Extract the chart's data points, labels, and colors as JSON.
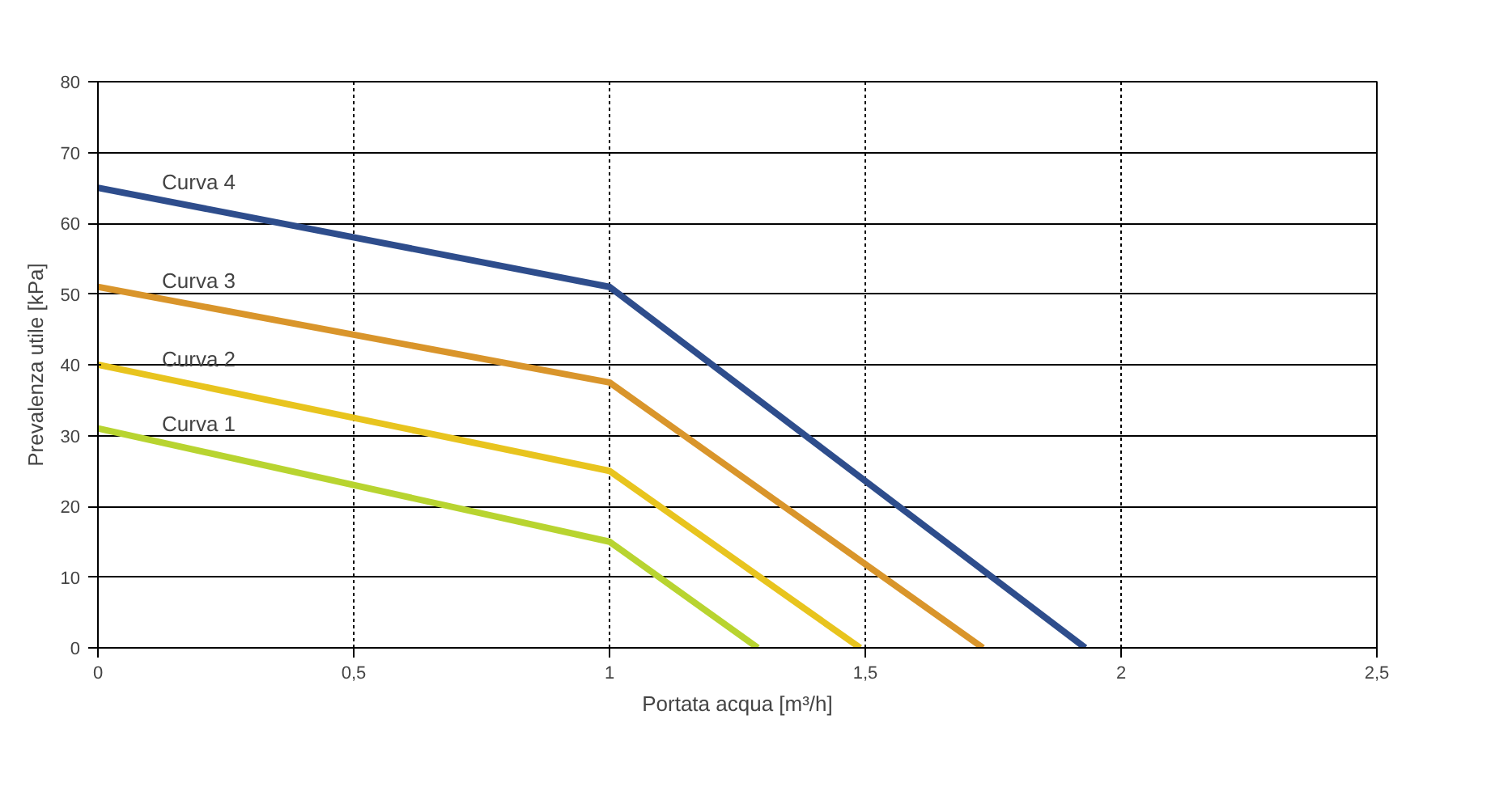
{
  "chart_data": {
    "type": "line",
    "xlabel": "Portata acqua [m³/h]",
    "ylabel": "Prevalenza utile [kPa]",
    "series": [
      {
        "name": "Curva 4",
        "color": "#2e4d8c",
        "x": [
          0,
          1,
          1.93
        ],
        "values": [
          65,
          51,
          0
        ]
      },
      {
        "name": "Curva 3",
        "color": "#d9952b",
        "x": [
          0,
          1,
          1.73
        ],
        "values": [
          51,
          37.5,
          0
        ]
      },
      {
        "name": "Curva 2",
        "color": "#e8c41e",
        "x": [
          0,
          1,
          1.49
        ],
        "values": [
          40,
          25,
          0
        ]
      },
      {
        "name": "Curva 1",
        "color": "#b8d430",
        "x": [
          0,
          1,
          1.29
        ],
        "values": [
          31,
          15,
          0
        ]
      }
    ],
    "xlim": [
      0,
      2.5
    ],
    "ylim": [
      0,
      80
    ],
    "xticks": [
      0,
      {
        "value": 0.5,
        "label": "0,5"
      },
      1,
      {
        "value": 1.5,
        "label": "1,5"
      },
      2,
      {
        "value": 2.5,
        "label": "2,5"
      }
    ],
    "yticks": [
      0,
      10,
      20,
      30,
      40,
      50,
      60,
      70,
      80
    ],
    "grid": true,
    "marker": "none",
    "line_style": "solid"
  }
}
